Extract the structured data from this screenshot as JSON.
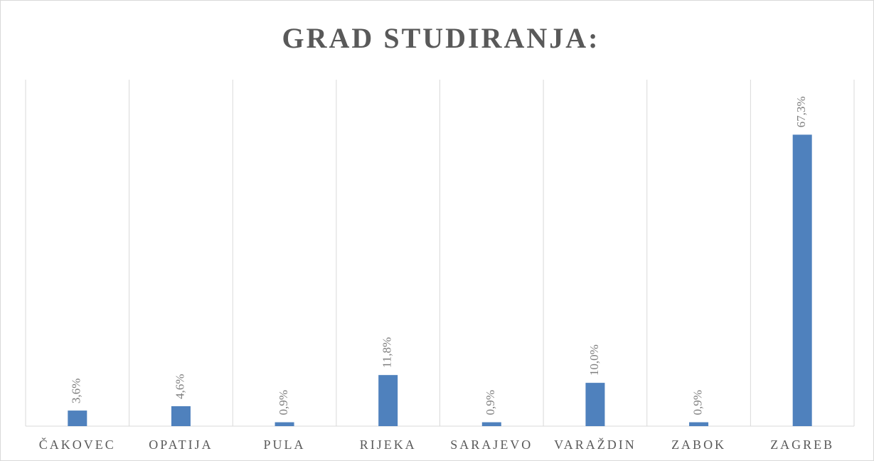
{
  "chart_data": {
    "type": "bar",
    "title": "GRAD STUDIRANJA:",
    "categories": [
      "ČAKOVEC",
      "OPATIJA",
      "PULA",
      "RIJEKA",
      "SARAJEVO",
      "VARAŽDIN",
      "ZABOK",
      "ZAGREB"
    ],
    "values": [
      3.6,
      4.6,
      0.9,
      11.8,
      0.9,
      10.0,
      0.9,
      67.3
    ],
    "value_labels": [
      "3,6%",
      "4,6%",
      "0,9%",
      "11,8%",
      "0,9%",
      "10,0%",
      "0,9%",
      "67,3%"
    ],
    "color": "#4f81bd",
    "ylim": [
      0,
      80
    ],
    "category_grid": true
  }
}
